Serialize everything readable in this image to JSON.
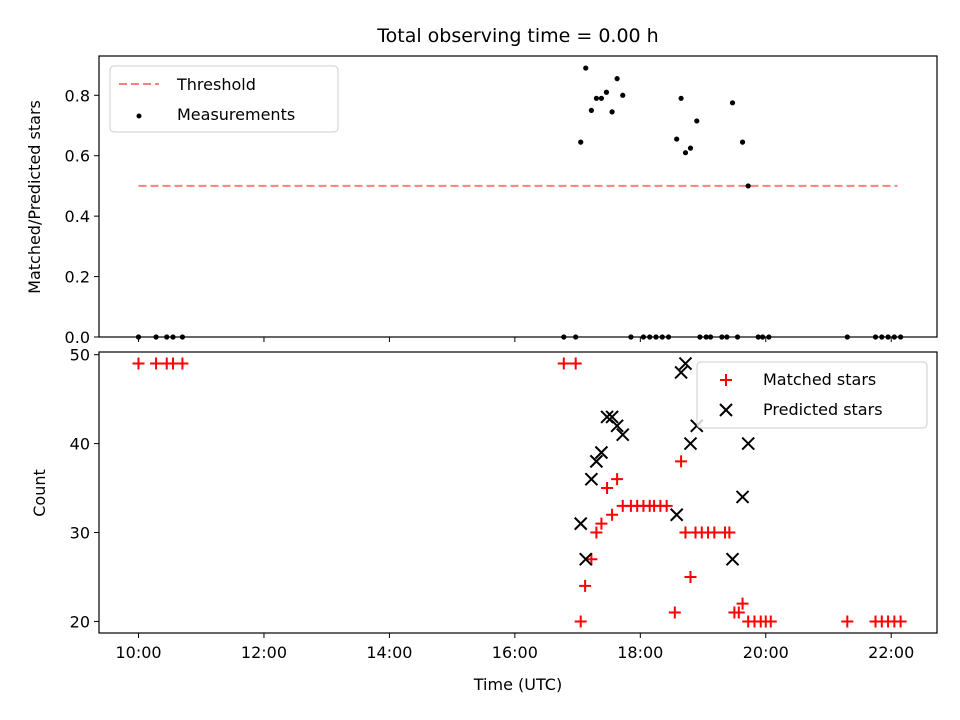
{
  "chart_data": {
    "type": "scatter",
    "title": "Total observing time = 0.00 h",
    "xlabel": "Time (UTC)",
    "x_unit": "hours UTC",
    "xlim": [
      9.37,
      22.73
    ],
    "xticks": [
      10,
      12,
      14,
      16,
      18,
      20,
      22
    ],
    "xtick_labels": [
      "10:00",
      "12:00",
      "14:00",
      "16:00",
      "18:00",
      "20:00",
      "22:00"
    ],
    "top": {
      "ylabel": "Matched/Predicted stars",
      "ylim": [
        0.0,
        0.93
      ],
      "yticks": [
        0.0,
        0.2,
        0.4,
        0.6,
        0.8
      ],
      "ytick_labels": [
        "0.0",
        "0.2",
        "0.4",
        "0.6",
        "0.8"
      ],
      "legend_position": "upper-left",
      "threshold": {
        "name": "Threshold",
        "value": 0.5,
        "x_range": [
          10.0,
          22.1
        ],
        "color": "#ff7f7f",
        "style": "dashed"
      },
      "measurements": {
        "name": "Measurements",
        "color": "#000000",
        "points": [
          [
            10.0,
            0.0
          ],
          [
            10.28,
            0.0
          ],
          [
            10.45,
            0.0
          ],
          [
            10.55,
            0.0
          ],
          [
            10.7,
            0.0
          ],
          [
            16.78,
            0.0
          ],
          [
            16.97,
            0.0
          ],
          [
            17.05,
            0.645
          ],
          [
            17.13,
            0.89
          ],
          [
            17.22,
            0.75
          ],
          [
            17.3,
            0.79
          ],
          [
            17.38,
            0.79
          ],
          [
            17.46,
            0.81
          ],
          [
            17.55,
            0.745
          ],
          [
            17.63,
            0.855
          ],
          [
            17.72,
            0.8
          ],
          [
            17.85,
            0.0
          ],
          [
            18.05,
            0.0
          ],
          [
            18.15,
            0.0
          ],
          [
            18.25,
            0.0
          ],
          [
            18.35,
            0.0
          ],
          [
            18.45,
            0.0
          ],
          [
            18.58,
            0.655
          ],
          [
            18.65,
            0.79
          ],
          [
            18.72,
            0.61
          ],
          [
            18.8,
            0.625
          ],
          [
            18.9,
            0.715
          ],
          [
            18.95,
            0.0
          ],
          [
            19.05,
            0.0
          ],
          [
            19.12,
            0.0
          ],
          [
            19.3,
            0.0
          ],
          [
            19.38,
            0.0
          ],
          [
            19.47,
            0.775
          ],
          [
            19.55,
            0.0
          ],
          [
            19.63,
            0.645
          ],
          [
            19.72,
            0.5
          ],
          [
            19.88,
            0.0
          ],
          [
            19.95,
            0.0
          ],
          [
            20.05,
            0.0
          ],
          [
            21.3,
            0.0
          ],
          [
            21.75,
            0.0
          ],
          [
            21.85,
            0.0
          ],
          [
            21.95,
            0.0
          ],
          [
            22.05,
            0.0
          ],
          [
            22.15,
            0.0
          ]
        ]
      }
    },
    "bottom": {
      "ylabel": "Count",
      "ylim": [
        18.7,
        50.3
      ],
      "yticks": [
        20,
        30,
        40,
        50
      ],
      "ytick_labels": [
        "20",
        "30",
        "40",
        "50"
      ],
      "legend_position": "upper-right",
      "matched": {
        "name": "Matched stars",
        "color": "#ff0000",
        "marker": "plus",
        "points": [
          [
            10.0,
            49
          ],
          [
            10.28,
            49
          ],
          [
            10.45,
            49
          ],
          [
            10.55,
            49
          ],
          [
            10.7,
            49
          ],
          [
            16.78,
            49
          ],
          [
            16.97,
            49
          ],
          [
            17.05,
            20
          ],
          [
            17.12,
            24
          ],
          [
            17.22,
            27
          ],
          [
            17.3,
            30
          ],
          [
            17.38,
            31
          ],
          [
            17.47,
            35
          ],
          [
            17.55,
            32
          ],
          [
            17.63,
            36
          ],
          [
            17.72,
            33
          ],
          [
            17.85,
            33
          ],
          [
            17.95,
            33
          ],
          [
            18.05,
            33
          ],
          [
            18.15,
            33
          ],
          [
            18.22,
            33
          ],
          [
            18.32,
            33
          ],
          [
            18.42,
            33
          ],
          [
            18.55,
            21
          ],
          [
            18.65,
            38
          ],
          [
            18.72,
            30
          ],
          [
            18.8,
            25
          ],
          [
            18.88,
            30
          ],
          [
            18.98,
            30
          ],
          [
            19.08,
            30
          ],
          [
            19.18,
            30
          ],
          [
            19.35,
            30
          ],
          [
            19.42,
            30
          ],
          [
            19.5,
            21
          ],
          [
            19.57,
            21
          ],
          [
            19.63,
            22
          ],
          [
            19.72,
            20
          ],
          [
            19.82,
            20
          ],
          [
            19.92,
            20
          ],
          [
            20.0,
            20
          ],
          [
            20.08,
            20
          ],
          [
            21.3,
            20
          ],
          [
            21.75,
            20
          ],
          [
            21.85,
            20
          ],
          [
            21.95,
            20
          ],
          [
            22.05,
            20
          ],
          [
            22.15,
            20
          ]
        ]
      },
      "predicted": {
        "name": "Predicted stars",
        "color": "#000000",
        "marker": "x",
        "points": [
          [
            17.05,
            31
          ],
          [
            17.13,
            27
          ],
          [
            17.22,
            36
          ],
          [
            17.3,
            38
          ],
          [
            17.38,
            39
          ],
          [
            17.47,
            43
          ],
          [
            17.55,
            43
          ],
          [
            17.63,
            42
          ],
          [
            17.72,
            41
          ],
          [
            18.58,
            32
          ],
          [
            18.65,
            48
          ],
          [
            18.72,
            49
          ],
          [
            18.8,
            40
          ],
          [
            18.9,
            42
          ],
          [
            19.47,
            27
          ],
          [
            19.63,
            34
          ],
          [
            19.72,
            40
          ]
        ]
      }
    }
  }
}
